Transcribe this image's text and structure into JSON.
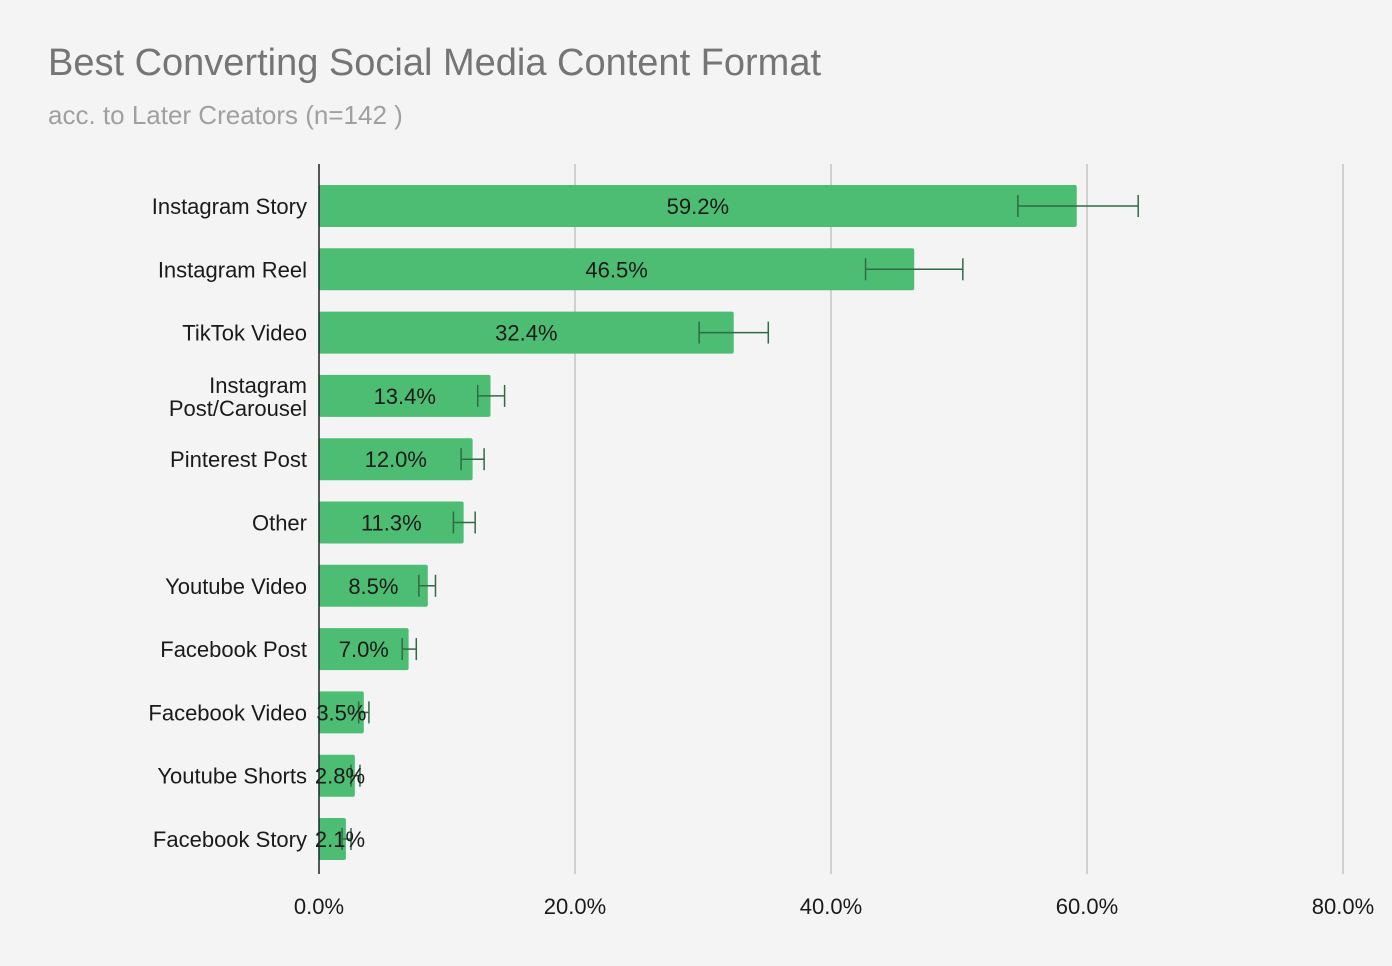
{
  "chart_data": {
    "type": "bar",
    "orientation": "horizontal",
    "title": "Best Converting Social Media Content Format",
    "subtitle": "acc. to Later Creators (n=142 )",
    "categories": [
      "Instagram Story",
      "Instagram Reel",
      "TikTok Video",
      "Instagram Post/Carousel",
      "Pinterest Post",
      "Other",
      "Youtube Video",
      "Facebook Post",
      "Facebook Video",
      "Youtube Shorts",
      "Facebook Story"
    ],
    "values": [
      59.2,
      46.5,
      32.4,
      13.4,
      12.0,
      11.3,
      8.5,
      7.0,
      3.5,
      2.8,
      2.1
    ],
    "data_labels": [
      "59.2%",
      "46.5%",
      "32.4%",
      "13.4%",
      "12.0%",
      "11.3%",
      "8.5%",
      "7.0%",
      "3.5%",
      "2.8%",
      "2.1%"
    ],
    "error_bars": [
      {
        "low": 54.6,
        "high": 64.0
      },
      {
        "low": 42.7,
        "high": 50.3
      },
      {
        "low": 29.7,
        "high": 35.1
      },
      {
        "low": 12.4,
        "high": 14.5
      },
      {
        "low": 11.1,
        "high": 12.9
      },
      {
        "low": 10.5,
        "high": 12.2
      },
      {
        "low": 7.8,
        "high": 9.1
      },
      {
        "low": 6.5,
        "high": 7.6
      },
      {
        "low": 3.1,
        "high": 3.9
      },
      {
        "low": 2.5,
        "high": 3.2
      },
      {
        "low": 1.8,
        "high": 2.5
      }
    ],
    "xlim": [
      0,
      80
    ],
    "x_ticks": [
      0,
      20,
      40,
      60,
      80
    ],
    "x_tick_labels": [
      "0.0%",
      "20.0%",
      "40.0%",
      "60.0%",
      "80.0%"
    ],
    "xlabel": "",
    "ylabel": "",
    "grid": "vertical",
    "legend": "none",
    "colors": {
      "bar": "#4dbd74",
      "error_bar": "#2e6b45",
      "grid": "#c4c4c4",
      "axis": "#222222",
      "title": "#757575",
      "subtitle": "#a0a0a0",
      "background": "#f4f4f4"
    }
  }
}
